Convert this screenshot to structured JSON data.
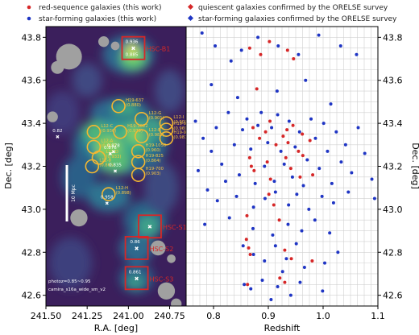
{
  "legend": {
    "items": [
      {
        "label": "red-sequence galaxies (this work)",
        "color": "#d62728",
        "marker": "dot"
      },
      {
        "label": "star-forming galaxies (this work)",
        "color": "#1f35c4",
        "marker": "dot"
      },
      {
        "label": "quiescent galaxies confirmed by the ORELSE survey",
        "color": "#d62728",
        "marker": "diamond"
      },
      {
        "label": "star-forming galaxies confirmed by the ORELSE survey",
        "color": "#1f35c4",
        "marker": "diamond"
      }
    ]
  },
  "chart_data": [
    {
      "type": "heatmap",
      "panel": "sky-map",
      "xlabel": "R.A. [deg]",
      "ylabel": "Dec. [deg]",
      "xlim": [
        241.5,
        240.65
      ],
      "ylim": [
        42.55,
        43.85
      ],
      "xticks": [
        "241.50",
        "241.25",
        "241.00",
        "240.75"
      ],
      "yticks": [
        "42.6",
        "42.8",
        "43.0",
        "43.2",
        "43.4",
        "43.6",
        "43.8"
      ],
      "background_color": "#3b1f5c",
      "masks": [
        {
          "ra": 241.36,
          "dec": 43.71,
          "r": 0.06
        },
        {
          "ra": 241.15,
          "dec": 43.78,
          "r": 0.025
        },
        {
          "ra": 241.08,
          "dec": 43.76,
          "r": 0.02
        },
        {
          "ra": 241.43,
          "dec": 43.66,
          "r": 0.03
        },
        {
          "ra": 241.46,
          "dec": 43.43,
          "r": 0.025
        },
        {
          "ra": 241.3,
          "dec": 42.96,
          "r": 0.04
        },
        {
          "ra": 240.82,
          "dec": 42.82,
          "r": 0.035
        },
        {
          "ra": 240.74,
          "dec": 42.77,
          "r": 0.02
        },
        {
          "ra": 240.77,
          "dec": 42.62,
          "r": 0.04
        },
        {
          "ra": 240.71,
          "dec": 42.56,
          "r": 0.025
        }
      ],
      "boxes": [
        {
          "label": "HSC-B1",
          "ra": 240.97,
          "dec": 43.75,
          "z": "0.936",
          "z2": "0.885"
        },
        {
          "label": "HSC-S1",
          "ra": 240.87,
          "dec": 42.92,
          "z": "",
          "z2": ""
        },
        {
          "label": "HSC-S2",
          "ra": 240.95,
          "dec": 42.82,
          "z": "0.86",
          "z2": ""
        },
        {
          "label": "HSC-S3",
          "ra": 240.95,
          "dec": 42.68,
          "z": "0.861",
          "z2": ""
        }
      ],
      "groups": [
        {
          "name": "L12-C",
          "z": "0.936",
          "ra": 241.21,
          "dec": 43.36
        },
        {
          "name": "H19-637",
          "z": "0.880",
          "ra": 241.06,
          "dec": 43.48
        },
        {
          "name": "L12-G",
          "z": "0.901",
          "ra": 240.92,
          "dec": 43.42
        },
        {
          "name": "L12-I",
          "z": "0.903",
          "ra": 240.77,
          "dec": 43.4
        },
        {
          "name": "H19-964",
          "z": "0.969",
          "ra": 240.77,
          "dec": 43.37
        },
        {
          "name": "H19-1022",
          "z": "0.979",
          "ra": 241.05,
          "dec": 43.36
        },
        {
          "name": "L12-E",
          "z": "0.982",
          "ra": 240.92,
          "dec": 43.34
        },
        {
          "name": "H19-997/1032",
          "z": "0.981/0.966",
          "ra": 240.77,
          "dec": 43.33
        },
        {
          "name": "L12-A",
          "z": "0.917",
          "ra": 241.21,
          "dec": 43.29
        },
        {
          "name": "H19-1050",
          "z": "0.960",
          "ra": 240.94,
          "dec": 43.27
        },
        {
          "name": "L12-D",
          "z": "0.933",
          "ra": 241.18,
          "dec": 43.24
        },
        {
          "name": "H19-825",
          "z": "0.864",
          "ra": 240.94,
          "dec": 43.22
        },
        {
          "name": "L12-B",
          "z": "0.865",
          "ra": 241.22,
          "dec": 43.2
        },
        {
          "name": "H19-700",
          "z": "0.903",
          "ra": 240.94,
          "dec": 43.16
        },
        {
          "name": "L12-H",
          "z": "0.898",
          "ra": 241.12,
          "dec": 43.07
        }
      ],
      "extra_labels": [
        {
          "text": "0.82",
          "ra": 241.43,
          "dec": 43.36
        },
        {
          "text": "0.876",
          "ra": 241.11,
          "dec": 43.28
        },
        {
          "text": "0.878",
          "ra": 241.09,
          "dec": 43.29
        },
        {
          "text": "0.835",
          "ra": 241.08,
          "dec": 43.2
        },
        {
          "text": "0.958",
          "ra": 241.13,
          "dec": 43.05
        }
      ],
      "scale_bar": "10 Mpc",
      "footnotes": [
        "photoz=0.85~0.95",
        "camira_s16a_wide_sm_v2"
      ]
    },
    {
      "type": "scatter",
      "panel": "redshift-distribution",
      "xlabel": "Redshift",
      "ylabel": "Dec. [deg]",
      "xlim": [
        0.75,
        1.1
      ],
      "ylim": [
        42.55,
        43.85
      ],
      "xticks": [
        "0.8",
        "0.9",
        "1.0",
        "1.1"
      ],
      "yticks": [
        "42.6",
        "42.8",
        "43.0",
        "43.2",
        "43.4",
        "43.6",
        "43.8"
      ],
      "grid": true,
      "series": [
        {
          "name": "red-sequence galaxies (this work)",
          "color": "#d62728",
          "points": [
            [
              0.866,
              43.75
            ],
            [
              0.886,
              43.72
            ],
            [
              0.902,
              43.78
            ],
            [
              0.935,
              43.74
            ],
            [
              0.946,
              43.7
            ],
            [
              0.872,
              43.38
            ],
            [
              0.884,
              43.33
            ],
            [
              0.895,
              43.36
            ],
            [
              0.903,
              43.41
            ],
            [
              0.914,
              43.3
            ],
            [
              0.927,
              43.34
            ],
            [
              0.934,
              43.37
            ],
            [
              0.936,
              43.31
            ],
            [
              0.945,
              43.39
            ],
            [
              0.955,
              43.27
            ],
            [
              0.962,
              43.35
            ],
            [
              0.976,
              43.32
            ],
            [
              0.866,
              43.24
            ],
            [
              0.869,
              43.2
            ],
            [
              0.874,
              43.18
            ],
            [
              0.898,
              43.22
            ],
            [
              0.904,
              43.14
            ],
            [
              0.932,
              43.24
            ],
            [
              0.941,
              43.19
            ],
            [
              0.958,
              43.15
            ],
            [
              0.963,
              43.25
            ],
            [
              0.981,
              43.16
            ],
            [
              0.901,
              43.07
            ],
            [
              0.91,
              43.02
            ],
            [
              0.861,
              42.97
            ],
            [
              0.86,
              42.86
            ],
            [
              0.864,
              42.82
            ],
            [
              0.867,
              42.79
            ],
            [
              0.93,
              42.81
            ],
            [
              0.942,
              42.77
            ],
            [
              0.98,
              42.76
            ],
            [
              0.92,
              42.95
            ],
            [
              0.921,
              42.68
            ],
            [
              0.93,
              42.66
            ],
            [
              0.862,
              42.65
            ],
            [
              0.879,
              43.56
            ]
          ]
        },
        {
          "name": "star-forming galaxies (this work)",
          "color": "#1f35c4",
          "points": [
            [
              0.779,
              43.82
            ],
            [
              0.803,
              43.76
            ],
            [
              0.832,
              43.69
            ],
            [
              0.851,
              43.74
            ],
            [
              0.881,
              43.8
            ],
            [
              0.918,
              43.76
            ],
            [
              0.955,
              43.72
            ],
            [
              0.992,
              43.81
            ],
            [
              1.032,
              43.76
            ],
            [
              1.061,
              43.72
            ],
            [
              0.796,
              43.58
            ],
            [
              0.844,
              43.52
            ],
            [
              0.916,
              43.55
            ],
            [
              0.968,
              43.6
            ],
            [
              1.014,
              43.49
            ],
            [
              0.767,
              43.41
            ],
            [
              0.781,
              43.33
            ],
            [
              0.796,
              43.27
            ],
            [
              0.805,
              43.38
            ],
            [
              0.815,
              43.21
            ],
            [
              0.827,
              43.45
            ],
            [
              0.838,
              43.3
            ],
            [
              0.847,
              43.16
            ],
            [
              0.853,
              43.37
            ],
            [
              0.861,
              43.42
            ],
            [
              0.868,
              43.28
            ],
            [
              0.876,
              43.12
            ],
            [
              0.881,
              43.39
            ],
            [
              0.887,
              43.45
            ],
            [
              0.893,
              43.2
            ],
            [
              0.899,
              43.31
            ],
            [
              0.906,
              43.38
            ],
            [
              0.911,
              43.13
            ],
            [
              0.917,
              43.44
            ],
            [
              0.923,
              43.27
            ],
            [
              0.929,
              43.21
            ],
            [
              0.938,
              43.41
            ],
            [
              0.944,
              43.15
            ],
            [
              0.949,
              43.29
            ],
            [
              0.957,
              43.36
            ],
            [
              0.964,
              43.11
            ],
            [
              0.971,
              43.23
            ],
            [
              0.978,
              43.42
            ],
            [
              0.986,
              43.33
            ],
            [
              0.993,
              43.19
            ],
            [
              1.001,
              43.4
            ],
            [
              1.008,
              43.27
            ],
            [
              1.016,
              43.12
            ],
            [
              1.024,
              43.36
            ],
            [
              1.033,
              43.22
            ],
            [
              1.041,
              43.3
            ],
            [
              1.052,
              43.17
            ],
            [
              1.064,
              43.38
            ],
            [
              1.076,
              43.26
            ],
            [
              1.089,
              43.14
            ],
            [
              0.772,
              43.18
            ],
            [
              0.789,
              43.09
            ],
            [
              0.807,
              43.04
            ],
            [
              0.822,
              43.13
            ],
            [
              0.842,
              43.06
            ],
            [
              0.873,
              43.01
            ],
            [
              0.894,
              43.05
            ],
            [
              0.913,
              43.08
            ],
            [
              0.937,
              43.02
            ],
            [
              0.952,
              43.07
            ],
            [
              0.974,
              43.0
            ],
            [
              0.998,
              43.06
            ],
            [
              1.019,
              43.03
            ],
            [
              1.046,
              43.08
            ],
            [
              1.094,
              43.05
            ],
            [
              0.784,
              42.93
            ],
            [
              0.829,
              42.96
            ],
            [
              0.872,
              42.91
            ],
            [
              0.908,
              42.88
            ],
            [
              0.936,
              42.93
            ],
            [
              0.961,
              42.9
            ],
            [
              0.985,
              42.95
            ],
            [
              1.012,
              42.89
            ],
            [
              0.854,
              42.83
            ],
            [
              0.873,
              42.79
            ],
            [
              0.893,
              42.76
            ],
            [
              0.913,
              42.83
            ],
            [
              0.933,
              42.77
            ],
            [
              0.951,
              42.84
            ],
            [
              0.966,
              42.73
            ],
            [
              1.003,
              42.75
            ],
            [
              1.027,
              42.8
            ],
            [
              0.856,
              42.65
            ],
            [
              0.868,
              42.63
            ],
            [
              0.889,
              42.67
            ],
            [
              0.917,
              42.64
            ],
            [
              0.926,
              42.71
            ],
            [
              0.941,
              42.6
            ],
            [
              0.958,
              42.66
            ],
            [
              0.999,
              42.62
            ],
            [
              0.905,
              42.58
            ]
          ]
        }
      ]
    }
  ],
  "right_ylabel": "Dec. [deg]"
}
